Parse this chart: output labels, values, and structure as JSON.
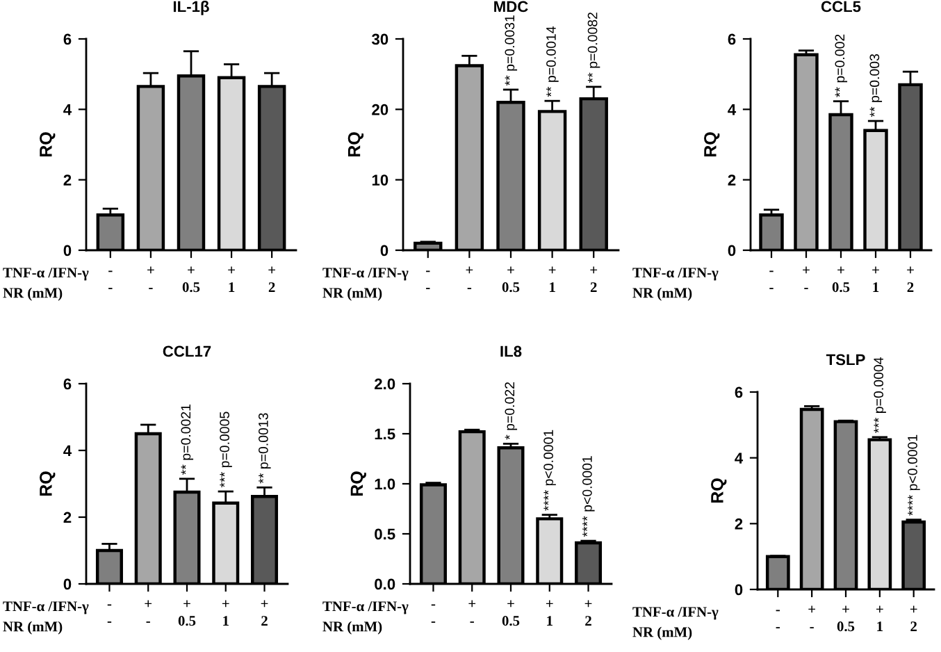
{
  "chart_data": [
    {
      "type": "bar",
      "title": "IL-1β",
      "ylabel": "RQ",
      "categories": [
        "-\n-",
        "+\n-",
        "+\n0.5",
        "+\n1",
        "+\n2"
      ],
      "values": [
        1.0,
        4.65,
        4.95,
        4.9,
        4.65
      ],
      "errors": [
        0.18,
        0.38,
        0.7,
        0.38,
        0.38
      ],
      "colors": [
        "#7f7f7f",
        "#a6a6a6",
        "#808080",
        "#d9d9d9",
        "#595959"
      ],
      "ylim": [
        0,
        6
      ],
      "yticks": [
        0,
        2,
        4,
        6
      ],
      "grid": false,
      "annotations": [
        "TNF-α /IFN-γ",
        "NR (mM)"
      ]
    },
    {
      "type": "bar",
      "title": "MDC",
      "ylabel": "RQ",
      "categories": [
        "-\n-",
        "+\n-",
        "+\n0.5",
        "+\n1",
        "+\n2"
      ],
      "values": [
        1.0,
        26.2,
        21.0,
        19.7,
        21.5
      ],
      "errors": [
        0.2,
        1.4,
        1.8,
        1.5,
        1.7
      ],
      "colors": [
        "#7f7f7f",
        "#a6a6a6",
        "#808080",
        "#d9d9d9",
        "#595959"
      ],
      "ylim": [
        0,
        30
      ],
      "yticks": [
        0,
        10,
        20,
        30
      ],
      "grid": false,
      "annotations": [
        "TNF-α /IFN-γ",
        "NR (mM)",
        {
          "text": "** p=0.0031",
          "x": "+\n0.5",
          "y": 22.8
        },
        {
          "text": "** p=0.0014",
          "x": "+\n1",
          "y": 21.2
        },
        {
          "text": "** p=0.0082",
          "x": "+\n2",
          "y": 23.2
        }
      ]
    },
    {
      "type": "bar",
      "title": "CCL5",
      "ylabel": "RQ",
      "categories": [
        "-\n-",
        "+\n-",
        "+\n0.5",
        "+\n1",
        "+\n2"
      ],
      "values": [
        1.0,
        5.55,
        3.85,
        3.4,
        4.7
      ],
      "errors": [
        0.15,
        0.12,
        0.38,
        0.27,
        0.37
      ],
      "colors": [
        "#7f7f7f",
        "#a6a6a6",
        "#808080",
        "#d9d9d9",
        "#595959"
      ],
      "ylim": [
        0,
        6
      ],
      "yticks": [
        0,
        2,
        4,
        6
      ],
      "grid": false,
      "annotations": [
        "TNF-α /IFN-γ",
        "NR (mM)",
        {
          "text": "** p=0.002",
          "x": "+\n0.5",
          "y": 4.23
        },
        {
          "text": "** p=0.003",
          "x": "+\n1",
          "y": 3.67
        }
      ]
    },
    {
      "type": "bar",
      "title": "CCL17",
      "ylabel": "RQ",
      "categories": [
        "-\n-",
        "+\n-",
        "+\n0.5",
        "+\n1",
        "+\n2"
      ],
      "values": [
        1.0,
        4.5,
        2.75,
        2.42,
        2.62
      ],
      "errors": [
        0.2,
        0.27,
        0.4,
        0.35,
        0.27
      ],
      "colors": [
        "#7f7f7f",
        "#a6a6a6",
        "#808080",
        "#d9d9d9",
        "#595959"
      ],
      "ylim": [
        0,
        6
      ],
      "yticks": [
        0,
        2,
        4,
        6
      ],
      "grid": false,
      "annotations": [
        "TNF-α /IFN-γ",
        "NR (mM)",
        {
          "text": "** p=0.0021",
          "x": "+\n0.5",
          "y": 3.15
        },
        {
          "text": "*** p=0.0005",
          "x": "+\n1",
          "y": 2.77
        },
        {
          "text": "** p=0.0013",
          "x": "+\n2",
          "y": 2.89
        }
      ]
    },
    {
      "type": "bar",
      "title": "IL8",
      "ylabel": "RQ",
      "categories": [
        "-\n-",
        "+\n-",
        "+\n0.5",
        "+\n1",
        "+\n2"
      ],
      "values": [
        0.99,
        1.52,
        1.36,
        0.65,
        0.41
      ],
      "errors": [
        0.02,
        0.02,
        0.04,
        0.04,
        0.02
      ],
      "colors": [
        "#7f7f7f",
        "#a6a6a6",
        "#808080",
        "#d9d9d9",
        "#595959"
      ],
      "ylim": [
        0,
        2
      ],
      "yticks": [
        {
          "value": 0,
          "label": "0.0"
        },
        {
          "value": 0.5,
          "label": "0.5"
        },
        {
          "value": 1,
          "label": "1.0"
        },
        {
          "value": 1.5,
          "label": "1.5"
        },
        {
          "value": 2,
          "label": "2.0"
        }
      ],
      "grid": false,
      "annotations": [
        "TNF-α /IFN-γ",
        "NR (mM)",
        {
          "text": "* p=0.022",
          "x": "+\n0.5",
          "y": 1.4
        },
        {
          "text": "**** p<0.0001",
          "x": "+\n1",
          "y": 0.69
        },
        {
          "text": "**** p<0.0001",
          "x": "+\n2",
          "y": 0.43
        }
      ]
    },
    {
      "type": "bar",
      "title": "TSLP",
      "ylabel": "RQ",
      "categories": [
        "-\n-",
        "+\n-",
        "+\n0.5",
        "+\n1",
        "+\n2"
      ],
      "values": [
        1.0,
        5.47,
        5.1,
        4.55,
        2.05
      ],
      "errors": [
        0.02,
        0.1,
        0.03,
        0.08,
        0.07
      ],
      "colors": [
        "#7f7f7f",
        "#a6a6a6",
        "#808080",
        "#d9d9d9",
        "#595959"
      ],
      "ylim": [
        0,
        6
      ],
      "yticks": [
        0,
        2,
        4,
        6
      ],
      "grid": false,
      "annotations": [
        "TNF-α /IFN-γ",
        "NR (mM)",
        {
          "text": "*** p=0.0004",
          "x": "+\n1",
          "y": 4.63
        },
        {
          "text": "**** p<0.0001",
          "x": "+\n2",
          "y": 2.12
        }
      ]
    }
  ]
}
